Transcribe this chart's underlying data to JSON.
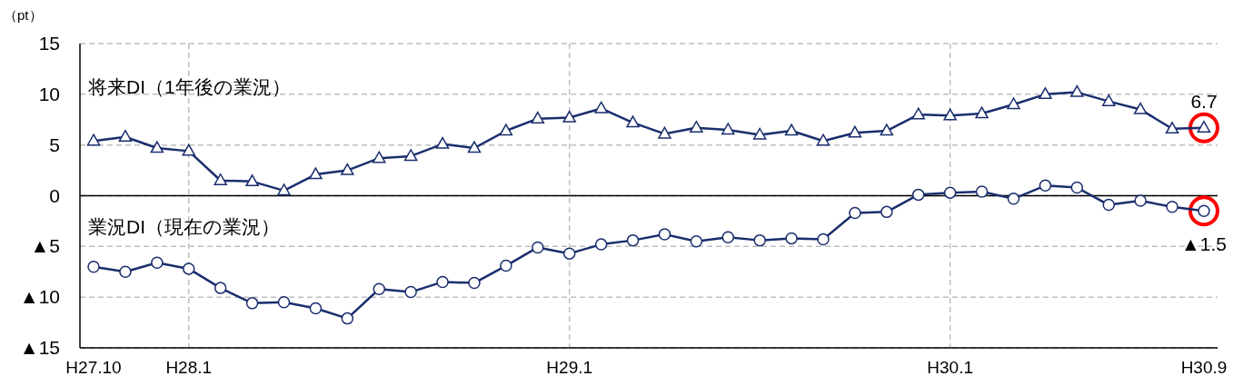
{
  "chart_data": {
    "type": "line",
    "ylabel": "（pt）",
    "categories": [
      "H27.10",
      null,
      null,
      "H28.1",
      null,
      null,
      null,
      null,
      null,
      null,
      null,
      null,
      null,
      null,
      null,
      "H29.1",
      null,
      null,
      null,
      null,
      null,
      null,
      null,
      null,
      null,
      null,
      null,
      "H30.1",
      null,
      null,
      null,
      null,
      null,
      null,
      null,
      "H30.9"
    ],
    "annotations": [
      {
        "text": "6.7",
        "x": "H30.9",
        "y": 6.7
      },
      {
        "text": "▲1.5",
        "x": "H30.9",
        "y": -1.5
      }
    ],
    "series": [
      {
        "name": "将来DI（1年後の業況）",
        "color": "#1a2e6e",
        "marker": "triangle",
        "values": [
          5.4,
          5.8,
          4.7,
          4.4,
          1.5,
          1.4,
          0.5,
          2.1,
          2.5,
          3.7,
          3.9,
          5.1,
          4.7,
          6.4,
          7.6,
          7.7,
          8.6,
          7.2,
          6.1,
          6.7,
          6.5,
          6.0,
          6.4,
          5.4,
          6.2,
          6.4,
          8.0,
          7.9,
          8.1,
          9.0,
          10.0,
          10.2,
          9.3,
          8.5,
          6.6,
          6.7
        ]
      },
      {
        "name": "業況DI（現在の業況）",
        "color": "#1a2e6e",
        "marker": "circle",
        "values": [
          -7.0,
          -7.5,
          -6.6,
          -7.2,
          -9.1,
          -10.6,
          -10.5,
          -11.1,
          -12.1,
          -9.2,
          -9.5,
          -8.5,
          -8.6,
          -6.9,
          -5.1,
          -5.7,
          -4.8,
          -4.4,
          -3.8,
          -4.5,
          -4.1,
          -4.4,
          -4.2,
          -4.3,
          -1.7,
          -1.6,
          0.1,
          0.3,
          0.4,
          -0.3,
          1.0,
          0.8,
          -0.9,
          -0.5,
          -1.1,
          -1.5
        ]
      }
    ],
    "ylim": [
      -15,
      15
    ],
    "yticks": [
      15,
      10,
      5,
      0,
      {
        "value": -5,
        "label": "▲5"
      },
      {
        "value": -10,
        "label": "▲10"
      },
      {
        "value": -15,
        "label": "▲15"
      }
    ],
    "grid": "y",
    "legend": false,
    "line_style": "solid",
    "ref_lines": [
      {
        "axis": "y",
        "value": 0,
        "color": "#000000",
        "line_style": "solid"
      },
      {
        "axis": "x",
        "value": "H28.1",
        "color": "#bfbfbf",
        "line_style": "dashed"
      },
      {
        "axis": "x",
        "value": "H29.1",
        "color": "#bfbfbf",
        "line_style": "dashed"
      },
      {
        "axis": "x",
        "value": "H30.1",
        "color": "#bfbfbf",
        "line_style": "dashed"
      }
    ]
  }
}
